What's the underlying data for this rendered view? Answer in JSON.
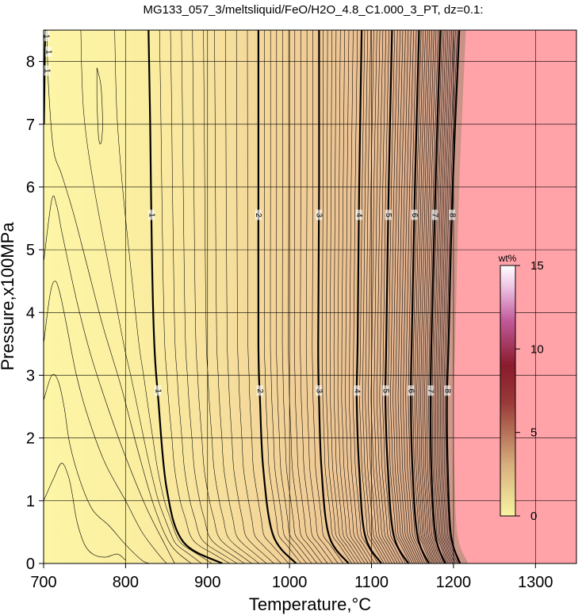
{
  "chart_data": {
    "type": "contour",
    "title": "MG133_057_3/meltsliquid/FeO/H2O_4.8_C1.000_3_PT, dz=0.1:",
    "xlabel": "Temperature,°C",
    "ylabel": "Pressure,x100MPa",
    "xlim": [
      700,
      1350
    ],
    "ylim": [
      0,
      8.5
    ],
    "xticks": [
      "700",
      "800",
      "900",
      "1000",
      "1100",
      "1200",
      "1300"
    ],
    "yticks": [
      "0",
      "1",
      "2",
      "3",
      "4",
      "5",
      "6",
      "7",
      "8"
    ],
    "grid": true,
    "contour_interval": 0.1,
    "colorbar": {
      "unit": "wt%",
      "range": [
        0,
        15
      ],
      "ticks": [
        "0",
        "5",
        "10",
        "15"
      ],
      "colors": [
        "#f8f4a0",
        "#c9a27a",
        "#8a1a2a",
        "#b8488c",
        "#ffffff"
      ]
    },
    "colors": {
      "no_data_region": "#ffa3a8",
      "low": "#fdf6a6",
      "mid": "#e7b890",
      "line": "#000000"
    },
    "major_contours": [
      {
        "level": "1",
        "label_upper": "1",
        "label_lower": "1",
        "points": [
          [
            918,
            0
          ],
          [
            870,
            0.35
          ],
          [
            850,
            1.2
          ],
          [
            840,
            2.6
          ],
          [
            835,
            3.5
          ],
          [
            832,
            5.0
          ],
          [
            830,
            7.0
          ],
          [
            828,
            8.5
          ]
        ]
      },
      {
        "level": "2",
        "label_upper": "2",
        "label_lower": "2",
        "points": [
          [
            1008,
            0
          ],
          [
            980,
            0.45
          ],
          [
            968,
            1.5
          ],
          [
            964,
            2.6
          ],
          [
            962,
            3.5
          ],
          [
            962,
            6.0
          ],
          [
            962,
            8.5
          ]
        ]
      },
      {
        "level": "3",
        "label_upper": "3",
        "label_lower": "3",
        "points": [
          [
            1072,
            0
          ],
          [
            1048,
            0.45
          ],
          [
            1039,
            1.5
          ],
          [
            1036,
            2.6
          ],
          [
            1035,
            3.5
          ],
          [
            1036,
            6.0
          ],
          [
            1036,
            8.5
          ]
        ]
      },
      {
        "level": "4",
        "label_upper": "4",
        "label_lower": "4",
        "points": [
          [
            1112,
            0
          ],
          [
            1092,
            0.45
          ],
          [
            1085,
            1.5
          ],
          [
            1082,
            2.6
          ],
          [
            1083,
            3.5
          ],
          [
            1085,
            6.0
          ],
          [
            1088,
            8.5
          ]
        ]
      },
      {
        "level": "5",
        "label_upper": "5",
        "label_lower": "5",
        "points": [
          [
            1145,
            0
          ],
          [
            1127,
            0.45
          ],
          [
            1120,
            1.5
          ],
          [
            1117,
            2.6
          ],
          [
            1118,
            3.5
          ],
          [
            1121,
            6.0
          ],
          [
            1125,
            8.5
          ]
        ]
      },
      {
        "level": "6",
        "label_upper": "6",
        "label_lower": "6",
        "points": [
          [
            1170,
            0
          ],
          [
            1156,
            0.45
          ],
          [
            1150,
            1.5
          ],
          [
            1148,
            2.6
          ],
          [
            1149,
            3.5
          ],
          [
            1153,
            6.0
          ],
          [
            1158,
            8.5
          ]
        ]
      },
      {
        "level": "7",
        "label_upper": "7",
        "label_lower": "7",
        "points": [
          [
            1190,
            0
          ],
          [
            1178,
            0.45
          ],
          [
            1173,
            1.5
          ],
          [
            1172,
            2.6
          ],
          [
            1173,
            3.5
          ],
          [
            1178,
            6.0
          ],
          [
            1184,
            8.5
          ]
        ]
      },
      {
        "level": "8",
        "label_upper": "8",
        "label_lower": "8",
        "points": [
          [
            1208,
            0
          ],
          [
            1197,
            0.45
          ],
          [
            1193,
            1.5
          ],
          [
            1192,
            2.6
          ],
          [
            1194,
            3.5
          ],
          [
            1199,
            6.0
          ],
          [
            1207,
            8.5
          ]
        ]
      }
    ],
    "boundary": [
      [
        1218,
        0
      ],
      [
        1205,
        0.45
      ],
      [
        1201,
        1.5
      ],
      [
        1200,
        2.6
      ],
      [
        1202,
        3.5
      ],
      [
        1207,
        6.0
      ],
      [
        1215,
        8.5
      ]
    ],
    "low_contour_loops": [
      {
        "level": "0.3",
        "points": [
          [
            700,
            1.0
          ],
          [
            712,
            1.35
          ],
          [
            722,
            1.6
          ],
          [
            730,
            1.4
          ],
          [
            735,
            1.1
          ],
          [
            738,
            0.85
          ],
          [
            742,
            0.6
          ],
          [
            750,
            0.3
          ],
          [
            760,
            0.15
          ],
          [
            775,
            0.1
          ],
          [
            790,
            0.15
          ],
          [
            800,
            0.05
          ]
        ]
      },
      {
        "level": "0.4",
        "points": [
          [
            700,
            2.6
          ],
          [
            710,
            3.0
          ],
          [
            718,
            2.9
          ],
          [
            725,
            2.5
          ],
          [
            732,
            1.9
          ],
          [
            745,
            1.3
          ],
          [
            760,
            0.85
          ],
          [
            780,
            0.6
          ],
          [
            800,
            0.3
          ],
          [
            820,
            0.05
          ],
          [
            830,
            0
          ]
        ]
      },
      {
        "level": "0.5",
        "points": [
          [
            700,
            3.5
          ],
          [
            708,
            4.3
          ],
          [
            714,
            4.5
          ],
          [
            720,
            4.3
          ],
          [
            728,
            3.8
          ],
          [
            740,
            3.0
          ],
          [
            755,
            2.3
          ],
          [
            775,
            1.6
          ],
          [
            800,
            1.0
          ],
          [
            820,
            0.5
          ],
          [
            840,
            0.15
          ],
          [
            850,
            0
          ]
        ]
      },
      {
        "level": "0.6",
        "points": [
          [
            700,
            4.8
          ],
          [
            710,
            5.8
          ],
          [
            716,
            5.7
          ],
          [
            722,
            5.3
          ],
          [
            730,
            4.8
          ],
          [
            742,
            4.1
          ],
          [
            758,
            3.3
          ],
          [
            778,
            2.5
          ],
          [
            800,
            1.7
          ],
          [
            825,
            0.9
          ],
          [
            848,
            0.3
          ],
          [
            860,
            0
          ]
        ]
      },
      {
        "level": "0.8",
        "points": [
          [
            704,
            8.5
          ],
          [
            706,
            7.6
          ],
          [
            712,
            6.6
          ],
          [
            722,
            6.2
          ],
          [
            736,
            5.6
          ],
          [
            752,
            4.8
          ],
          [
            772,
            3.8
          ],
          [
            795,
            2.8
          ],
          [
            815,
            1.8
          ],
          [
            835,
            0.9
          ],
          [
            855,
            0.3
          ],
          [
            880,
            0
          ]
        ]
      }
    ],
    "small_loop": [
      [
        765,
        7.9
      ],
      [
        770,
        7.6
      ],
      [
        772,
        7.0
      ],
      [
        770,
        6.7
      ],
      [
        767,
        6.8
      ],
      [
        765,
        7.4
      ]
    ],
    "edge_contour_labels": [
      "1",
      "1",
      "1"
    ]
  }
}
